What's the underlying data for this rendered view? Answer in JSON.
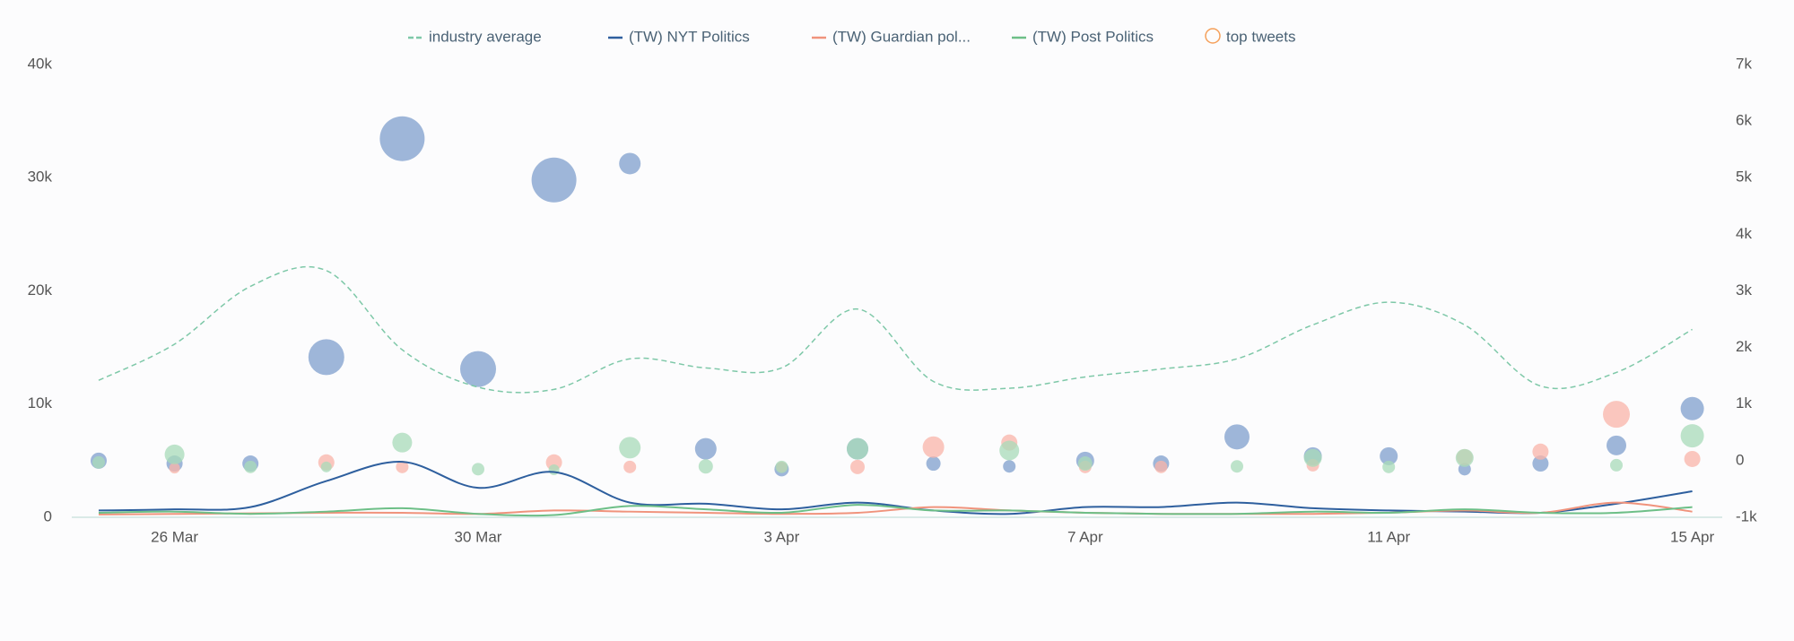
{
  "chart_data": {
    "type": "line-bubble",
    "categories": [
      null,
      "26 Mar",
      null,
      null,
      null,
      "30 Mar",
      null,
      null,
      null,
      "3 Apr",
      null,
      null,
      null,
      "7 Apr",
      null,
      null,
      null,
      "11 Apr",
      null,
      null,
      null,
      "15 Apr"
    ],
    "ylim": [
      0,
      40000
    ],
    "yticks": [
      0,
      {
        "value": 10000,
        "label": "10k"
      },
      {
        "value": 20000,
        "label": "20k"
      },
      {
        "value": 30000,
        "label": "30k"
      },
      {
        "value": 40000,
        "label": "40k"
      }
    ],
    "y2lim": [
      -1000,
      7000
    ],
    "y2ticks": [
      {
        "value": -1000,
        "label": "-1k"
      },
      0,
      {
        "value": 1000,
        "label": "1k"
      },
      {
        "value": 2000,
        "label": "2k"
      },
      {
        "value": 3000,
        "label": "3k"
      },
      {
        "value": 4000,
        "label": "4k"
      },
      {
        "value": 5000,
        "label": "5k"
      },
      {
        "value": 6000,
        "label": "6k"
      },
      {
        "value": 7000,
        "label": "7k"
      }
    ],
    "series": [
      {
        "name": "industry average",
        "color": "#7ec8a8",
        "dashed": true,
        "values": [
          12100,
          15300,
          20400,
          21800,
          14800,
          11500,
          11300,
          14000,
          13200,
          13200,
          18400,
          12000,
          11400,
          12400,
          13100,
          14000,
          17000,
          19000,
          17000,
          11600,
          12800,
          16600
        ]
      },
      {
        "name": "(TW) NYT Politics",
        "color": "#2e5f9e",
        "values": [
          600,
          700,
          900,
          3200,
          4900,
          2600,
          4000,
          1300,
          1200,
          700,
          1300,
          600,
          300,
          900,
          900,
          1300,
          800,
          600,
          500,
          400,
          1200,
          2300
        ]
      },
      {
        "name": "(TW) Guardian pol...",
        "color": "#f0937c",
        "values": [
          250,
          300,
          350,
          400,
          400,
          300,
          600,
          500,
          400,
          300,
          400,
          900,
          600,
          400,
          300,
          300,
          300,
          400,
          600,
          400,
          1300,
          500
        ]
      },
      {
        "name": "(TW) Post Politics",
        "color": "#6dbf87",
        "values": [
          400,
          500,
          300,
          500,
          800,
          300,
          200,
          1000,
          700,
          400,
          1100,
          600,
          600,
          400,
          300,
          300,
          500,
          400,
          700,
          400,
          400,
          900
        ]
      }
    ],
    "bubbles": {
      "name": "top tweets",
      "color": "#f5a05a",
      "axis": "y2",
      "groups": [
        {
          "color": "#7f9fcc",
          "x": [
            0,
            1,
            2,
            3,
            4,
            5,
            6,
            7,
            8,
            9,
            10,
            11,
            12,
            13,
            14,
            15,
            16,
            17,
            18,
            19,
            20,
            21
          ],
          "values": [
            0,
            -50,
            -50,
            1830,
            5690,
            1620,
            4960,
            5250,
            210,
            -150,
            210,
            -50,
            -100,
            0,
            -50,
            420,
            80,
            80,
            -150,
            -50,
            270,
            920
          ],
          "sizes": [
            9,
            9,
            9,
            20,
            25,
            20,
            25,
            12,
            12,
            8,
            12,
            8,
            7,
            10,
            9,
            14,
            10,
            10,
            7,
            9,
            11,
            13
          ]
        },
        {
          "color": "#f9b4a8",
          "x": [
            1,
            3,
            4,
            6,
            7,
            9,
            10,
            11,
            12,
            13,
            14,
            16,
            18,
            19,
            20,
            21
          ],
          "values": [
            -130,
            -30,
            -110,
            -30,
            -110,
            -110,
            -110,
            240,
            320,
            -110,
            -110,
            -80,
            60,
            160,
            820,
            30
          ],
          "sizes": [
            6,
            9,
            7,
            9,
            7,
            6,
            8,
            12,
            9,
            7,
            7,
            7,
            9,
            9,
            15,
            9
          ]
        },
        {
          "color": "#a8dbb8",
          "x": [
            0,
            1,
            2,
            3,
            4,
            5,
            6,
            7,
            8,
            9,
            10,
            12,
            13,
            15,
            16,
            17,
            18,
            20,
            21
          ],
          "values": [
            -30,
            110,
            -110,
            -110,
            320,
            -150,
            -160,
            230,
            -100,
            -110,
            210,
            180,
            -50,
            -100,
            50,
            -110,
            50,
            -80,
            440
          ],
          "sizes": [
            7,
            11,
            7,
            6,
            11,
            7,
            6,
            12,
            8,
            7,
            12,
            11,
            8,
            7,
            10,
            7,
            10,
            7,
            13
          ]
        }
      ]
    }
  }
}
